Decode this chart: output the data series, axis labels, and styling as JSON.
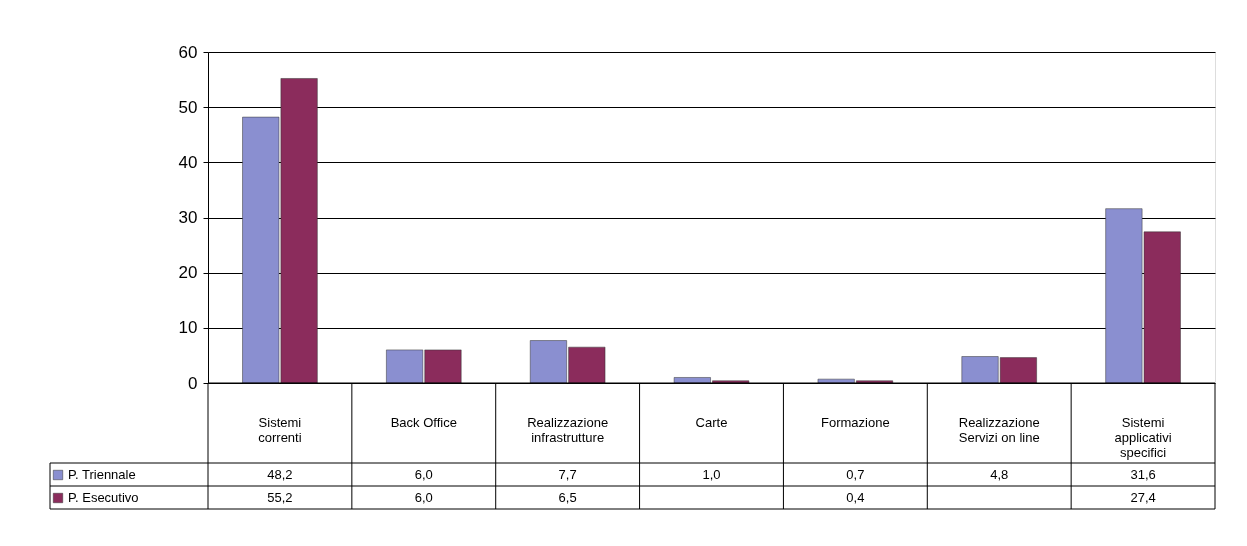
{
  "chart_data": {
    "type": "bar",
    "categories": [
      "Sistemi correnti",
      "Back Office",
      "Realizzazione infrastrutture",
      "Carte",
      "Formazione",
      "Realizzazione Servizi on line",
      "Sistemi applicativi specifici"
    ],
    "series": [
      {
        "name": "P. Triennale",
        "color": "#8a8fd0",
        "values": [
          48.2,
          6.0,
          7.7,
          1.0,
          0.7,
          4.8,
          31.6
        ],
        "value_labels": [
          "48,2",
          "6,0",
          "7,7",
          "1,0",
          "0,7",
          "4,8",
          "31,6"
        ]
      },
      {
        "name": "P. Esecutivo",
        "color": "#8b2c5c",
        "values": [
          55.2,
          6.0,
          6.5,
          0.4,
          0.4,
          4.6,
          27.4
        ],
        "value_labels": [
          "55,2",
          "6,0",
          "6,5",
          null,
          "0,4",
          null,
          "27,4"
        ]
      }
    ],
    "ylim": [
      0,
      60
    ],
    "yticks": [
      0,
      10,
      20,
      30,
      40,
      50,
      60
    ],
    "grid": "y",
    "legend": "bottom left"
  }
}
